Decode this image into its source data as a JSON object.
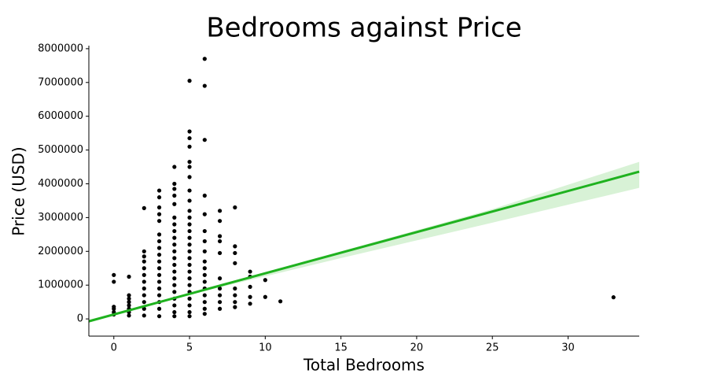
{
  "chart_data": {
    "type": "scatter",
    "title": "Bedrooms against Price",
    "x_label": "Total Bedrooms",
    "y_label": "Price (USD)",
    "xlim": [
      -1.65,
      34.7
    ],
    "ylim": [
      -510000,
      8090000
    ],
    "xticks": [
      0,
      5,
      10,
      15,
      20,
      25,
      30
    ],
    "yticks": [
      0,
      1000000,
      2000000,
      3000000,
      4000000,
      5000000,
      6000000,
      7000000,
      8000000
    ],
    "series": [
      {
        "color": "#000000",
        "x": [
          0,
          0,
          0,
          0,
          0,
          0,
          1,
          1,
          1,
          1,
          1,
          1,
          1,
          1,
          2,
          2,
          2,
          2,
          2,
          2,
          2,
          2,
          2,
          2,
          2,
          2,
          3,
          3,
          3,
          3,
          3,
          3,
          3,
          3,
          3,
          3,
          3,
          3,
          3,
          3,
          3,
          3,
          3,
          3,
          4,
          4,
          4,
          4,
          4,
          4,
          4,
          4,
          4,
          4,
          4,
          4,
          4,
          4,
          4,
          4,
          4,
          4,
          4,
          4,
          4,
          5,
          5,
          5,
          5,
          5,
          5,
          5,
          5,
          5,
          5,
          5,
          5,
          5,
          5,
          5,
          5,
          5,
          5,
          5,
          5,
          5,
          5,
          5,
          5,
          5,
          5,
          6,
          6,
          6,
          6,
          6,
          6,
          6,
          6,
          6,
          6,
          6,
          6,
          6,
          6,
          6,
          6,
          6,
          7,
          7,
          7,
          7,
          7,
          7,
          7,
          7,
          7,
          7,
          8,
          8,
          8,
          8,
          8,
          8,
          8,
          8,
          9,
          9,
          9,
          9,
          9,
          10,
          10,
          11,
          33
        ],
        "values": [
          130000,
          200000,
          300000,
          360000,
          1100000,
          1300000,
          100000,
          200000,
          300000,
          400000,
          500000,
          600000,
          700000,
          1250000,
          100000,
          300000,
          500000,
          700000,
          900000,
          1100000,
          1300000,
          1500000,
          1700000,
          1850000,
          2000000,
          3280000,
          80000,
          300000,
          500000,
          700000,
          900000,
          1100000,
          1300000,
          1500000,
          1700000,
          1900000,
          2100000,
          2300000,
          2500000,
          2900000,
          3100000,
          3300000,
          3600000,
          3800000,
          80000,
          200000,
          400000,
          600000,
          800000,
          1000000,
          1200000,
          1400000,
          1600000,
          1800000,
          2000000,
          2200000,
          2400000,
          2600000,
          2800000,
          3000000,
          3400000,
          3650000,
          3850000,
          4000000,
          4500000,
          80000,
          200000,
          400000,
          600000,
          800000,
          1000000,
          1200000,
          1400000,
          1600000,
          1800000,
          2000000,
          2200000,
          2400000,
          2600000,
          2800000,
          3000000,
          3200000,
          3500000,
          3800000,
          4200000,
          4500000,
          4650000,
          5100000,
          5350000,
          5550000,
          7050000,
          150000,
          300000,
          500000,
          700000,
          900000,
          1100000,
          1300000,
          1500000,
          1700000,
          2000000,
          2300000,
          2600000,
          3100000,
          3650000,
          5300000,
          6900000,
          7700000,
          300000,
          500000,
          700000,
          900000,
          1200000,
          1950000,
          2300000,
          2450000,
          2900000,
          3200000,
          350000,
          500000,
          700000,
          900000,
          1650000,
          1950000,
          2150000,
          3300000,
          450000,
          650000,
          950000,
          1250000,
          1400000,
          650000,
          1150000,
          520000,
          640000
        ]
      }
    ],
    "fit": {
      "color": "#1fb21f",
      "x": [
        -1.65,
        34.7
      ],
      "values": [
        -70000,
        4360000
      ]
    },
    "band": {
      "color": "#c8ecc4",
      "x": [
        -1.65,
        5,
        15,
        25,
        34.7
      ],
      "lower": [
        -110000,
        720000,
        1800000,
        2850000,
        3880000
      ],
      "upper": [
        -30000,
        770000,
        2000000,
        3250000,
        4650000
      ]
    }
  }
}
